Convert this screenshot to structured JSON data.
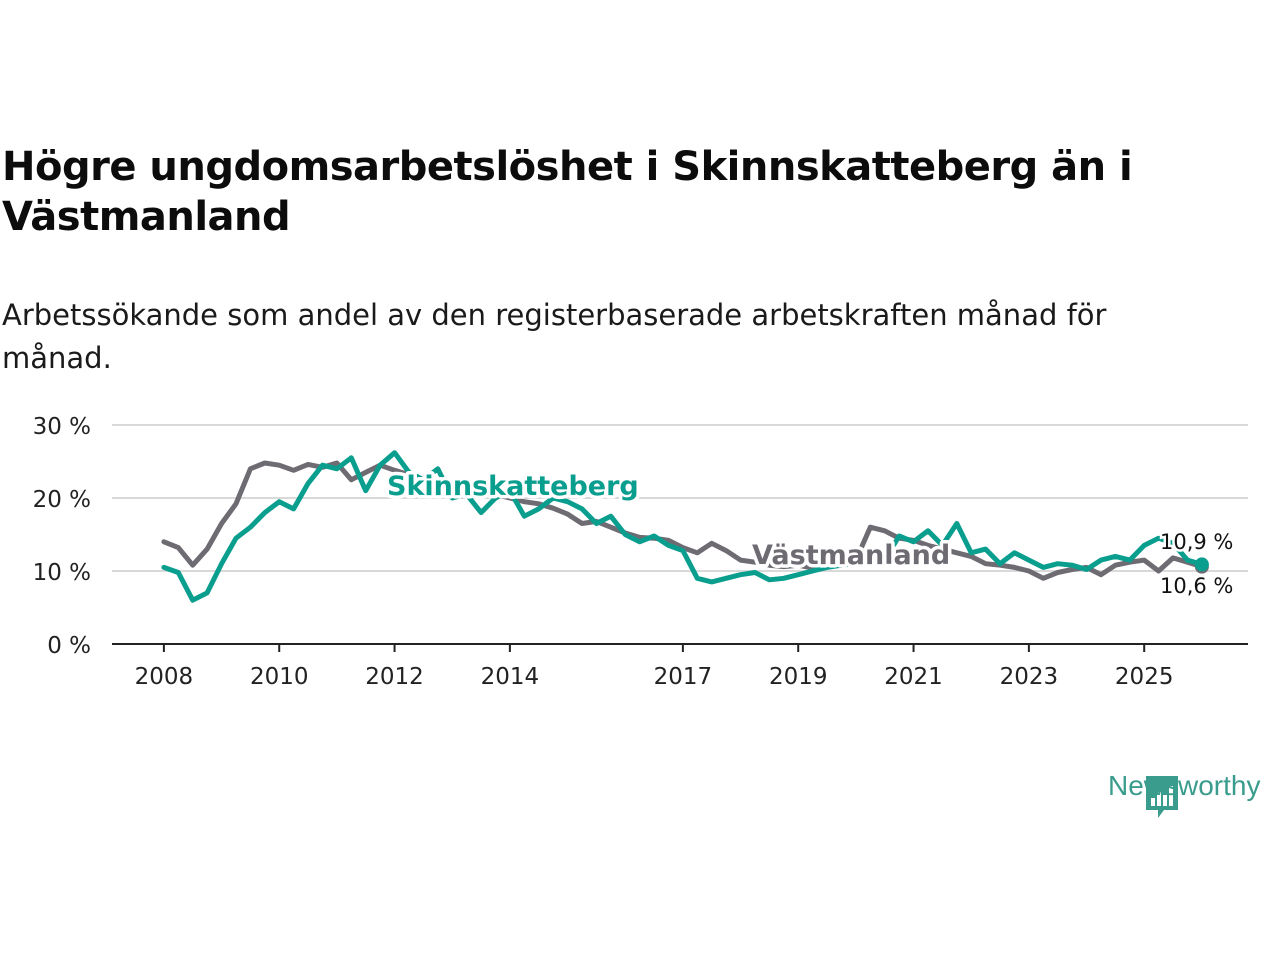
{
  "chart_data": {
    "type": "line",
    "title": "Högre ungdomsarbetslöshet i Skinnskatteberg än i Västmanland",
    "subtitle": "Arbetssökande som andel av den registerbaserade arbetskraften månad för månad.",
    "xlabel": "",
    "ylabel": "",
    "ylim": [
      0,
      30
    ],
    "yticks": [
      "0 %",
      "10 %",
      "20 %",
      "30 %"
    ],
    "ytick_values": [
      0,
      10,
      20,
      30
    ],
    "xticks": [
      "2008",
      "2010",
      "2012",
      "2014",
      "2017",
      "2019",
      "2021",
      "2023",
      "2025"
    ],
    "xtick_values": [
      2008,
      2010,
      2012,
      2014,
      2017,
      2019,
      2021,
      2023,
      2025
    ],
    "xlim": [
      2007.1,
      2026.8
    ],
    "grid": true,
    "series": [
      {
        "name": "Västmanland",
        "color": "#6e6b73",
        "label": "Västmanland",
        "end_label": "10,6 %",
        "x": [
          2008.0,
          2008.25,
          2008.5,
          2008.75,
          2009.0,
          2009.25,
          2009.5,
          2009.75,
          2010.0,
          2010.25,
          2010.5,
          2010.75,
          2011.0,
          2011.25,
          2011.5,
          2011.75,
          2012.0,
          2012.25,
          2012.5,
          2012.75,
          2013.0,
          2013.25,
          2013.5,
          2013.75,
          2014.0,
          2014.25,
          2014.5,
          2014.75,
          2015.0,
          2015.25,
          2015.5,
          2015.75,
          2016.0,
          2016.25,
          2016.5,
          2016.75,
          2017.0,
          2017.25,
          2017.5,
          2017.75,
          2018.0,
          2018.25,
          2018.5,
          2018.75,
          2019.0,
          2019.25,
          2019.5,
          2019.75,
          2020.0,
          2020.25,
          2020.5,
          2020.75,
          2021.0,
          2021.25,
          2021.5,
          2021.75,
          2022.0,
          2022.25,
          2022.5,
          2022.75,
          2023.0,
          2023.25,
          2023.5,
          2023.75,
          2024.0,
          2024.25,
          2024.5,
          2024.75,
          2025.0,
          2025.25,
          2025.5,
          2025.75,
          2026.0
        ],
        "values": [
          14.0,
          13.2,
          10.8,
          13.0,
          16.5,
          19.2,
          24.0,
          24.8,
          24.5,
          23.8,
          24.6,
          24.2,
          24.8,
          22.5,
          23.5,
          24.5,
          23.8,
          23.2,
          22.5,
          22.0,
          21.5,
          21.0,
          20.8,
          20.5,
          20.0,
          19.5,
          19.2,
          18.6,
          17.8,
          16.5,
          16.8,
          16.0,
          15.2,
          14.6,
          14.5,
          14.2,
          13.2,
          12.5,
          13.8,
          12.8,
          11.5,
          11.2,
          10.8,
          10.6,
          10.8,
          10.4,
          10.6,
          10.8,
          11.5,
          16.0,
          15.5,
          14.5,
          14.2,
          13.5,
          13.0,
          12.5,
          12.0,
          11.0,
          10.8,
          10.5,
          10.0,
          9.0,
          9.8,
          10.2,
          10.5,
          9.5,
          10.8,
          11.2,
          11.5,
          10.0,
          11.8,
          11.2,
          10.6
        ]
      },
      {
        "name": "Skinnskatteberg",
        "color": "#0a9e8e",
        "label": "Skinnskatteberg",
        "end_label": "10,9 %",
        "x": [
          2008.0,
          2008.25,
          2008.5,
          2008.75,
          2009.0,
          2009.25,
          2009.5,
          2009.75,
          2010.0,
          2010.25,
          2010.5,
          2010.75,
          2011.0,
          2011.25,
          2011.5,
          2011.75,
          2012.0,
          2012.25,
          2012.5,
          2012.75,
          2013.0,
          2013.25,
          2013.5,
          2013.75,
          2014.0,
          2014.25,
          2014.5,
          2014.75,
          2015.0,
          2015.25,
          2015.5,
          2015.75,
          2016.0,
          2016.25,
          2016.5,
          2016.75,
          2017.0,
          2017.25,
          2017.5,
          2017.75,
          2018.0,
          2018.25,
          2018.5,
          2018.75,
          2019.0,
          2019.25,
          2019.5,
          2019.75,
          2020.0,
          2020.25,
          2020.5,
          2020.75,
          2021.0,
          2021.25,
          2021.5,
          2021.75,
          2022.0,
          2022.25,
          2022.5,
          2022.75,
          2023.0,
          2023.25,
          2023.5,
          2023.75,
          2024.0,
          2024.25,
          2024.5,
          2024.75,
          2025.0,
          2025.25,
          2025.5,
          2025.75,
          2026.0
        ],
        "values": [
          10.5,
          9.8,
          6.0,
          7.0,
          11.0,
          14.5,
          16.0,
          18.0,
          19.5,
          18.5,
          22.0,
          24.5,
          24.0,
          25.5,
          21.0,
          24.5,
          26.2,
          23.5,
          22.5,
          24.0,
          20.0,
          20.5,
          18.0,
          20.0,
          21.0,
          17.5,
          18.5,
          20.0,
          19.5,
          18.5,
          16.5,
          17.5,
          15.0,
          14.0,
          14.8,
          13.5,
          12.8,
          9.0,
          8.5,
          9.0,
          9.5,
          9.8,
          8.8,
          9.0,
          9.5,
          10.0,
          10.5,
          10.8,
          11.0,
          11.2,
          11.5,
          14.8,
          14.0,
          15.5,
          13.5,
          16.5,
          12.5,
          13.0,
          11.0,
          12.5,
          11.5,
          10.5,
          11.0,
          10.8,
          10.2,
          11.5,
          12.0,
          11.5,
          13.5,
          14.5,
          13.8,
          11.5,
          10.9
        ]
      }
    ]
  },
  "header": {
    "title": "Högre ungdomsarbetslöshet i Skinnskatteberg än i Västmanland",
    "subtitle": "Arbetssökande som andel av den registerbaserade arbetskraften månad för månad."
  },
  "branding": {
    "name": "Newsworthy",
    "icon": "bar-chart-bubble-icon",
    "color": "#3a9c8c"
  }
}
